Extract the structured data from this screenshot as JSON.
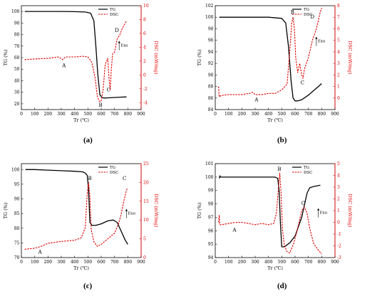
{
  "colors": {
    "tg": "#000000",
    "dsc": "#e00000"
  },
  "panel_labels": [
    "(a)",
    "(b)",
    "(c)",
    "(d)"
  ],
  "chart_data": [
    {
      "panel": "(a)",
      "type": "line",
      "xlabel": "Tr (℃)",
      "ylabel_left": "TG (%)",
      "ylabel_right": "DSC (mW/mg)",
      "xlim": [
        0,
        900
      ],
      "xticks": [
        0,
        100,
        200,
        300,
        400,
        500,
        600,
        700,
        800,
        900
      ],
      "ylim_left": [
        15,
        105
      ],
      "yticks_left": [
        20,
        30,
        40,
        50,
        60,
        70,
        80,
        90,
        100
      ],
      "ylim_right": [
        -5,
        10
      ],
      "yticks_right": [
        -4,
        -2,
        0,
        2,
        4,
        6,
        8,
        10
      ],
      "legend": [
        "TG",
        "DSC"
      ],
      "exo_label": "Exo",
      "exo_at": [
        735,
        4.4
      ],
      "series": [
        {
          "name": "TG",
          "axis": "left",
          "style": "solid",
          "x": [
            25,
            100,
            200,
            300,
            400,
            480,
            520,
            545,
            560,
            575,
            590,
            605,
            620,
            650,
            700,
            750,
            790
          ],
          "y": [
            100,
            100,
            100,
            100,
            99.8,
            99.5,
            98.5,
            92,
            70,
            45,
            28,
            25.5,
            25,
            25.2,
            25.5,
            25.8,
            26
          ]
        },
        {
          "name": "DSC",
          "axis": "right",
          "style": "dashed",
          "x": [
            25,
            100,
            200,
            280,
            310,
            325,
            340,
            400,
            460,
            500,
            530,
            555,
            570,
            585,
            600,
            615,
            630,
            650,
            660,
            668,
            675,
            685,
            700,
            720,
            740,
            760,
            790
          ],
          "y": [
            2.2,
            2.3,
            2.4,
            2.6,
            2.2,
            2.5,
            2.6,
            2.6,
            2.7,
            2.6,
            1.8,
            -0.5,
            -3.0,
            -3.8,
            -3.8,
            -2.0,
            1.5,
            2.4,
            -0.8,
            -2.2,
            0.5,
            3.0,
            3.3,
            5.2,
            5.8,
            6.8,
            7.8
          ]
        }
      ],
      "annotations": [
        {
          "text": "A",
          "x": 320,
          "y": 1.1,
          "axis": "right"
        },
        {
          "text": "B",
          "x": 595,
          "y": -4.6,
          "axis": "right"
        },
        {
          "text": "C",
          "x": 655,
          "y": -2.4,
          "axis": "right"
        },
        {
          "text": "D",
          "x": 718,
          "y": 6.2,
          "axis": "right"
        }
      ]
    },
    {
      "panel": "(b)",
      "type": "line",
      "xlabel": "Tr (℃)",
      "ylabel_left": "TG (%)",
      "ylabel_right": "DSC (mW/mg)",
      "xlim": [
        0,
        900
      ],
      "xticks": [
        0,
        100,
        200,
        300,
        400,
        500,
        600,
        700,
        800,
        900
      ],
      "ylim_left": [
        84,
        102
      ],
      "yticks_left": [
        84,
        86,
        88,
        90,
        92,
        94,
        96,
        98,
        100,
        102
      ],
      "ylim_right": [
        -1,
        8
      ],
      "yticks_right": [
        0,
        1,
        2,
        3,
        4,
        5,
        6,
        7,
        8
      ],
      "legend": [
        "TG",
        "DSC"
      ],
      "exo_label": "Exo",
      "exo_at": [
        760,
        5.0
      ],
      "series": [
        {
          "name": "TG",
          "axis": "left",
          "style": "solid",
          "x": [
            30,
            100,
            200,
            300,
            400,
            500,
            530,
            550,
            570,
            585,
            600,
            620,
            650,
            700,
            750,
            800
          ],
          "y": [
            100,
            100,
            100,
            100,
            100,
            99.8,
            99,
            95,
            89,
            86,
            85.5,
            85.5,
            85.7,
            86.5,
            87.5,
            88.5
          ]
        },
        {
          "name": "DSC",
          "axis": "right",
          "style": "dashed",
          "x": [
            25,
            28,
            32,
            40,
            100,
            200,
            260,
            280,
            300,
            350,
            400,
            450,
            500,
            540,
            560,
            575,
            585,
            595,
            605,
            620,
            635,
            650,
            660,
            670,
            700,
            730,
            760,
            790,
            800
          ],
          "y": [
            1.0,
            0.3,
            0.1,
            0.2,
            0.3,
            0.3,
            0.4,
            0.5,
            0.3,
            0.3,
            0.4,
            0.4,
            0.7,
            1.2,
            4.0,
            6.5,
            7.0,
            6.0,
            3.5,
            2.2,
            3.0,
            2.0,
            1.7,
            2.5,
            3.5,
            5.0,
            6.0,
            7.5,
            7.8
          ]
        }
      ],
      "annotations": [
        {
          "text": "A",
          "x": 310,
          "y": -0.3,
          "axis": "right"
        },
        {
          "text": "B",
          "x": 580,
          "y": 7.3,
          "axis": "right"
        },
        {
          "text": "C",
          "x": 655,
          "y": 1.2,
          "axis": "right"
        },
        {
          "text": "D",
          "x": 730,
          "y": 6.9,
          "axis": "right"
        }
      ]
    },
    {
      "panel": "(c)",
      "type": "line",
      "xlabel": "Tr (℃)",
      "ylabel_left": "TG (%)",
      "ylabel_right": "DSC (mW/mg)",
      "xlim": [
        0,
        900
      ],
      "xticks": [
        0,
        100,
        200,
        300,
        400,
        500,
        600,
        700,
        800,
        900
      ],
      "ylim_left": [
        70,
        102
      ],
      "yticks_left": [
        70,
        75,
        80,
        85,
        90,
        95,
        100
      ],
      "ylim_right": [
        0,
        25
      ],
      "yticks_right": [
        0,
        5,
        10,
        15,
        20,
        25
      ],
      "legend": [
        "TG",
        "DSC"
      ],
      "exo_label": "Exo",
      "exo_at": [
        790,
        12.0
      ],
      "series": [
        {
          "name": "TG",
          "axis": "left",
          "style": "solid",
          "x": [
            30,
            100,
            200,
            300,
            400,
            460,
            480,
            495,
            505,
            515,
            530,
            560,
            600,
            650,
            690,
            720,
            750,
            780,
            800
          ],
          "y": [
            100,
            100,
            99.8,
            99.6,
            99.4,
            99.2,
            98.8,
            98,
            93,
            82,
            81,
            81,
            81.5,
            82.5,
            82.8,
            82,
            79,
            76,
            74.5
          ]
        },
        {
          "name": "DSC",
          "axis": "right",
          "style": "dashed",
          "x": [
            25,
            100,
            150,
            200,
            300,
            400,
            450,
            480,
            495,
            505,
            515,
            525,
            545,
            570,
            600,
            650,
            700,
            730,
            750,
            770,
            790,
            800
          ],
          "y": [
            2.2,
            2.5,
            3.0,
            3.8,
            4.3,
            4.6,
            5.3,
            8.0,
            17.0,
            20.0,
            16.0,
            7.5,
            4.2,
            3.0,
            3.5,
            5.0,
            6.5,
            9.0,
            11.5,
            15.0,
            18.0,
            18.5
          ]
        }
      ],
      "annotations": [
        {
          "text": "A",
          "x": 140,
          "y": 1.0,
          "axis": "right"
        },
        {
          "text": "B",
          "x": 515,
          "y": 20.6,
          "axis": "right"
        },
        {
          "text": "C",
          "x": 775,
          "y": 20.6,
          "axis": "right"
        }
      ]
    },
    {
      "panel": "(d)",
      "type": "line",
      "xlabel": "Tr (℃)",
      "ylabel_left": "TG (%)",
      "ylabel_right": "DSC (mW/mg)",
      "xlim": [
        0,
        900
      ],
      "xticks": [
        0,
        100,
        200,
        300,
        400,
        500,
        600,
        700,
        800,
        900
      ],
      "ylim_left": [
        94,
        101
      ],
      "yticks_left": [
        94,
        95,
        96,
        97,
        98,
        99,
        100,
        101
      ],
      "ylim_right": [
        -3,
        5
      ],
      "yticks_right": [
        -3,
        -2,
        -1,
        0,
        1,
        2,
        3,
        4,
        5
      ],
      "legend": [
        "TG",
        "DSC"
      ],
      "exo_label": "Exo",
      "exo_at": [
        775,
        0.9
      ],
      "series": [
        {
          "name": "TG",
          "axis": "left",
          "style": "solid",
          "x": [
            30,
            35,
            40,
            100,
            200,
            300,
            400,
            450,
            470,
            480,
            490,
            500,
            520,
            560,
            600,
            650,
            690,
            710,
            740,
            790
          ],
          "y": [
            99.9,
            100.1,
            100,
            100,
            100,
            100,
            100,
            100,
            99.9,
            99,
            96.5,
            94.8,
            94.8,
            95.1,
            95.6,
            97,
            98.8,
            99.2,
            99.3,
            99.4
          ]
        },
        {
          "name": "DSC",
          "axis": "right",
          "style": "dashed",
          "x": [
            25,
            30,
            35,
            45,
            100,
            150,
            200,
            250,
            300,
            350,
            400,
            440,
            460,
            475,
            485,
            495,
            505,
            520,
            540,
            560,
            590,
            620,
            650,
            670,
            690,
            710,
            740,
            770,
            800
          ],
          "y": [
            0.0,
            0.6,
            -0.2,
            -0.2,
            -0.1,
            0.0,
            0.0,
            -0.1,
            -0.2,
            -0.1,
            -0.2,
            -0.1,
            0.8,
            3.0,
            4.2,
            2.5,
            -0.6,
            -2.0,
            -2.5,
            -2.6,
            -1.8,
            -0.5,
            1.0,
            1.3,
            0.8,
            -0.5,
            -1.8,
            -2.3,
            -2.7
          ]
        }
      ],
      "annotations": [
        {
          "text": "A",
          "x": 145,
          "y": -0.8,
          "axis": "right"
        },
        {
          "text": "B",
          "x": 482,
          "y": 4.4,
          "axis": "right"
        },
        {
          "text": "C",
          "x": 662,
          "y": 1.5,
          "axis": "right"
        }
      ]
    }
  ]
}
